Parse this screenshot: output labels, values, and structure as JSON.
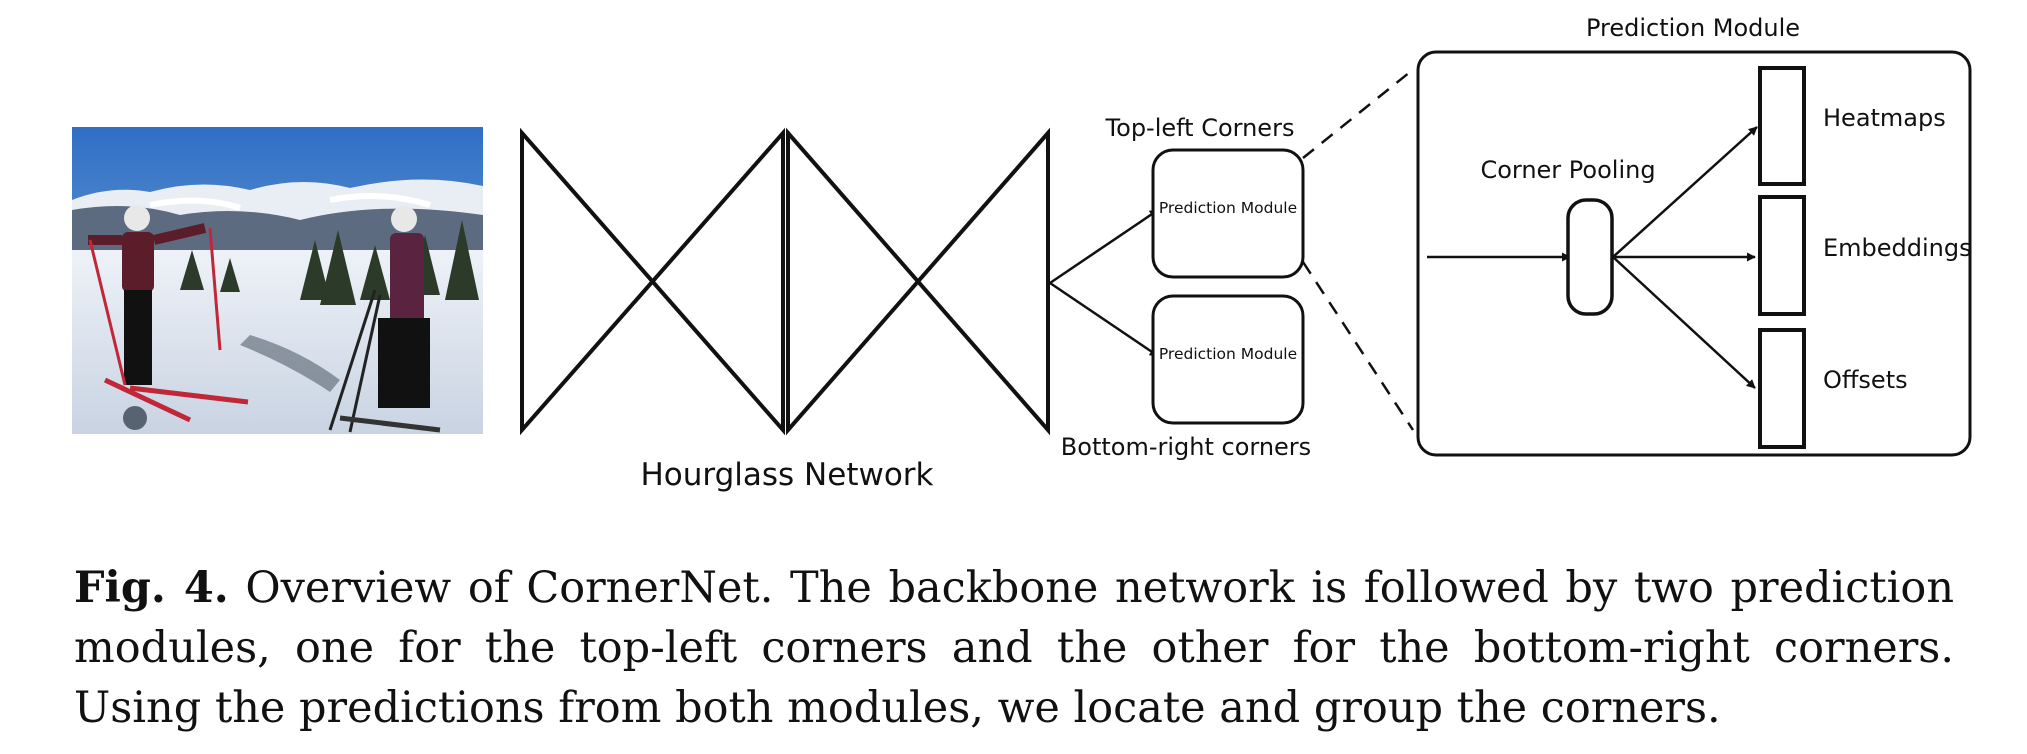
{
  "figure": {
    "photo_description": "",
    "hourglass_label": "Hourglass Network",
    "top_branch_label": "Top-left Corners",
    "bottom_branch_label": "Bottom-right corners",
    "small_module_label": "Prediction Module",
    "zoom_title": "Prediction Module",
    "corner_pooling_label": "Corner Pooling",
    "outputs": [
      "Heatmaps",
      "Embeddings",
      "Offsets"
    ]
  },
  "caption": {
    "label": "Fig. 4.",
    "text": "Overview of CornerNet. The backbone network is followed by two prediction modules, one for the top-left corners and the other for the bottom-right corners. Using the predictions from both modules, we locate and group the corners."
  }
}
